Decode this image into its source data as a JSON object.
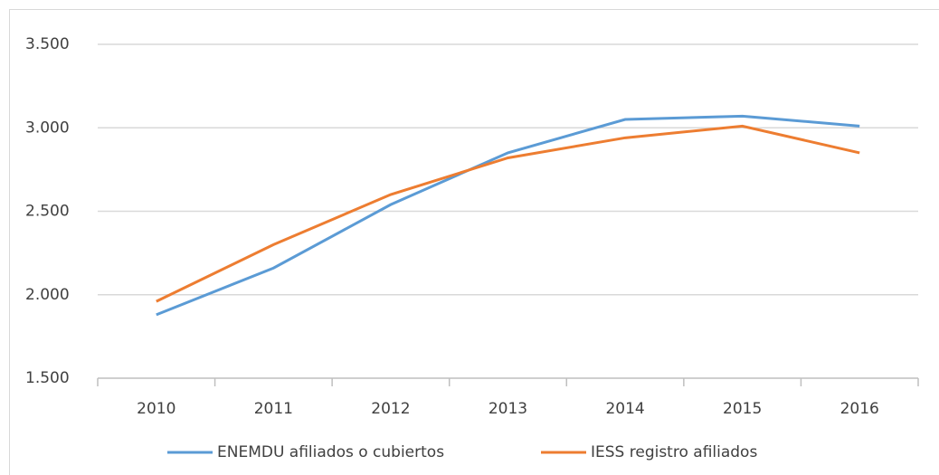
{
  "chart_data": {
    "type": "line",
    "categories": [
      "2010",
      "2011",
      "2012",
      "2013",
      "2014",
      "2015",
      "2016"
    ],
    "series": [
      {
        "name": "ENEMDU afiliados o cubiertos",
        "color": "#5b9bd5",
        "values": [
          1880,
          2160,
          2540,
          2850,
          3050,
          3070,
          3010
        ]
      },
      {
        "name": "IESS registro afiliados",
        "color": "#ed7d31",
        "values": [
          1960,
          2300,
          2600,
          2820,
          2940,
          3010,
          2850
        ]
      }
    ],
    "ylim": [
      1500,
      3500
    ],
    "yticks": [
      {
        "value": 1500,
        "label": "1.500"
      },
      {
        "value": 2000,
        "label": "2.000"
      },
      {
        "value": 2500,
        "label": "2.500"
      },
      {
        "value": 3000,
        "label": "3.000"
      },
      {
        "value": 3500,
        "label": "3.500"
      }
    ],
    "grid": true,
    "legend": "bottom"
  }
}
